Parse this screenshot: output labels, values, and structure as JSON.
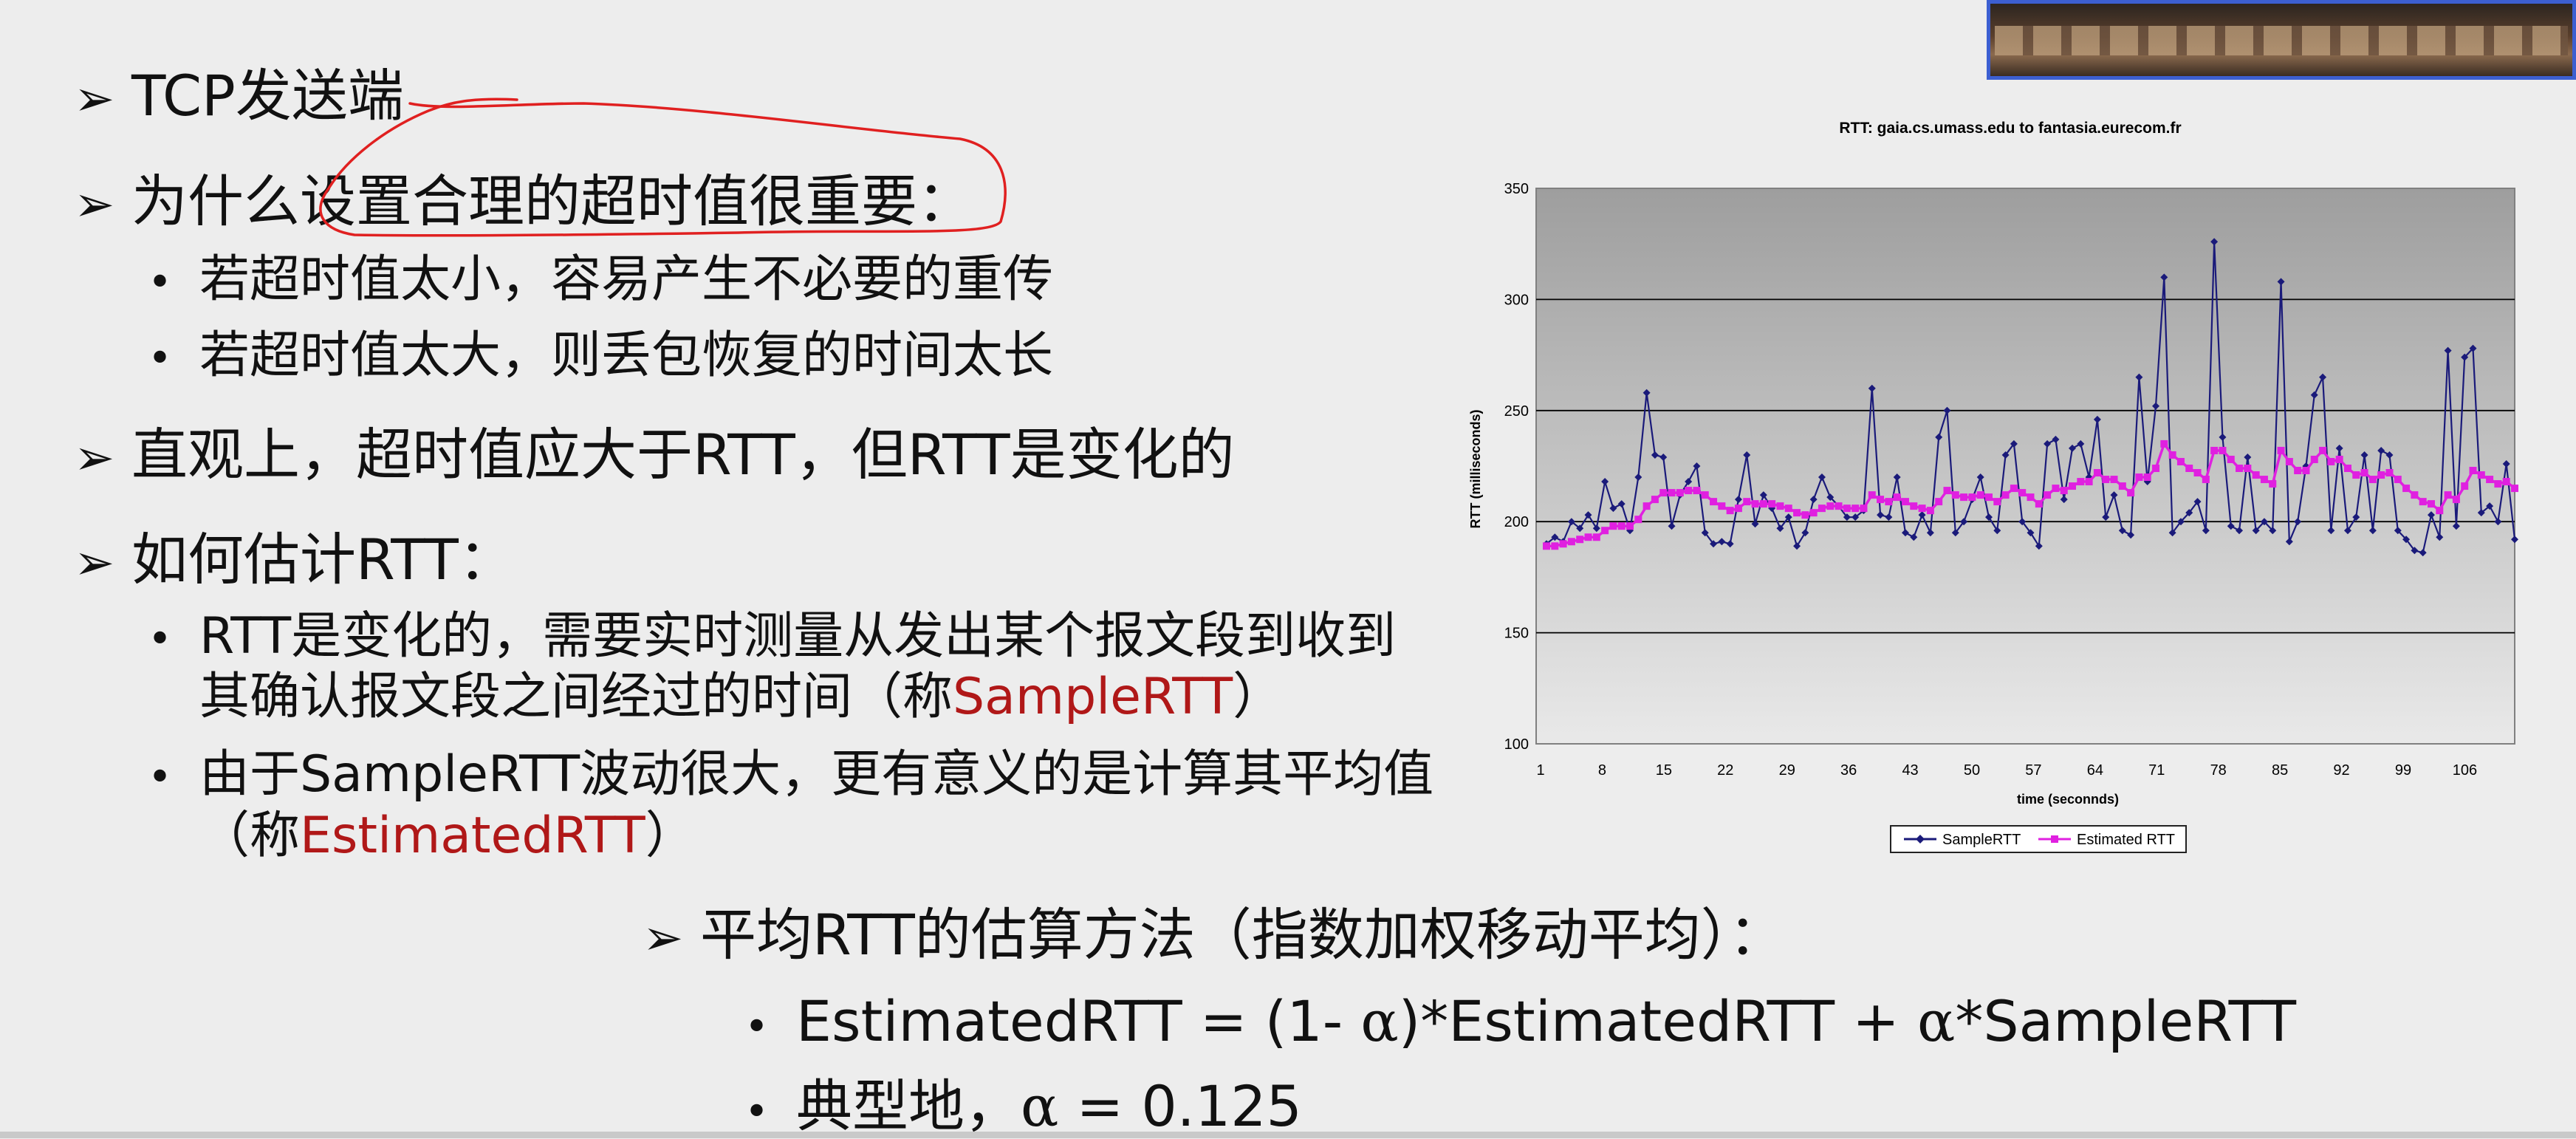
{
  "slide": {
    "b1": "TCP发送端",
    "b2": "为什么设置合理的超时值很重要：",
    "b2_sub1": "若超时值太小，容易产生不必要的重传",
    "b2_sub2": "若超时值太大，则丢包恢复的时间太长",
    "b3": "直观上，超时值应大于RTT，但RTT是变化的",
    "b4": "如何估计RTT：",
    "b4_sub1_line1": "RTT是变化的，需要实时测量从发出某个报文段到收到",
    "b4_sub1_line2_pre": "其确认报文段之间经过的时间（称",
    "b4_sub1_line2_red": "SampleRTT",
    "b4_sub1_line2_post": "）",
    "b4_sub2_line1": "由于SampleRTT波动很大，更有意义的是计算其平均值",
    "b4_sub2_line2_pre": "（称",
    "b4_sub2_line2_red": "EstimatedRTT",
    "b4_sub2_line2_post": "）",
    "b5": "平均RTT的估算方法（指数加权移动平均）：",
    "b5_sub1_a": "EstimatedRTT = (1- ",
    "b5_sub1_alpha1": "α",
    "b5_sub1_b": ")*EstimatedRTT + ",
    "b5_sub1_alpha2": "α",
    "b5_sub1_c": "*SampleRTT",
    "b5_sub2_a": "典型地，",
    "b5_sub2_alpha": "α",
    "b5_sub2_b": " = 0.125",
    "arrow_glyph": "➢",
    "bullet_glyph": "•"
  },
  "colors": {
    "accent_red": "#b01818",
    "annotation_red": "#e02020",
    "sample_series": "#1a1a7a",
    "estimated_series": "#e020e0"
  },
  "chart_data": {
    "type": "line",
    "title": "RTT: gaia.cs.umass.edu to fantasia.eurecom.fr",
    "xlabel": "time (seconnds)",
    "ylabel": "RTT (milliseconds)",
    "ylim": [
      100,
      350
    ],
    "yticks": [
      100,
      150,
      200,
      250,
      300,
      350
    ],
    "xlim": [
      1,
      111
    ],
    "xticks": [
      1,
      8,
      15,
      22,
      29,
      36,
      43,
      50,
      57,
      64,
      71,
      78,
      85,
      92,
      99,
      106
    ],
    "grid": true,
    "legend": "bottom",
    "series": [
      {
        "name": "SampleRTT",
        "color": "#1a1a7a",
        "marker": "diamond",
        "values": [
          190,
          193,
          191,
          200,
          197,
          203,
          197,
          218,
          206,
          208,
          196,
          220,
          258,
          230,
          229,
          198,
          212,
          218,
          225,
          195,
          190,
          191,
          190,
          210,
          230,
          199,
          212,
          206,
          197,
          202,
          189,
          195,
          210,
          220,
          211,
          207,
          202,
          202,
          205,
          260,
          203,
          202,
          220,
          195,
          193,
          203,
          195,
          238,
          250,
          195,
          200,
          210,
          220,
          202,
          196,
          230,
          235,
          200,
          195,
          189,
          235,
          237,
          210,
          233,
          235,
          220,
          246,
          202,
          212,
          196,
          194,
          265,
          218,
          252,
          310,
          195,
          200,
          204,
          209,
          196,
          326,
          238,
          198,
          196,
          229,
          196,
          200,
          196,
          308,
          191,
          200,
          225,
          257,
          265,
          196,
          233,
          196,
          202,
          230,
          196,
          232,
          230,
          196,
          192,
          187,
          186,
          203,
          193,
          277,
          198,
          274,
          278,
          204,
          207,
          200,
          226,
          192
        ]
      },
      {
        "name": "Estimated RTT",
        "color": "#e020e0",
        "marker": "square",
        "values": [
          189,
          189,
          190,
          191,
          192,
          193,
          193,
          196,
          198,
          198,
          198,
          201,
          207,
          210,
          213,
          213,
          213,
          214,
          214,
          212,
          209,
          207,
          205,
          206,
          209,
          208,
          208,
          208,
          207,
          206,
          204,
          203,
          204,
          206,
          207,
          207,
          206,
          206,
          206,
          212,
          210,
          209,
          211,
          209,
          207,
          206,
          205,
          209,
          214,
          212,
          211,
          211,
          212,
          211,
          209,
          212,
          215,
          213,
          211,
          208,
          212,
          215,
          214,
          216,
          218,
          218,
          222,
          219,
          219,
          216,
          213,
          220,
          220,
          224,
          235,
          230,
          227,
          224,
          222,
          219,
          232,
          232,
          228,
          224,
          224,
          221,
          219,
          217,
          232,
          227,
          223,
          223,
          228,
          232,
          227,
          228,
          224,
          221,
          222,
          219,
          221,
          222,
          219,
          215,
          212,
          209,
          208,
          205,
          212,
          210,
          216,
          223,
          221,
          219,
          217,
          218,
          215
        ]
      }
    ]
  }
}
